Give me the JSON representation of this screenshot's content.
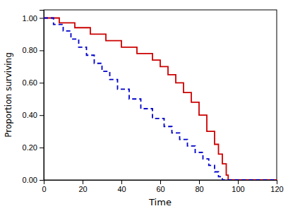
{
  "chart_data": {
    "type": "line",
    "xlabel": "Time",
    "ylabel": "Proportion surviving",
    "xlim": [
      0,
      120
    ],
    "ylim": [
      0.0,
      1.05
    ],
    "xticks": [
      0,
      20,
      40,
      60,
      80,
      100,
      120
    ],
    "yticks": [
      {
        "value": 0.0,
        "label": "0.00"
      },
      {
        "value": 0.2,
        "label": "0.20"
      },
      {
        "value": 0.4,
        "label": "0.40"
      },
      {
        "value": 0.6,
        "label": "0.60"
      },
      {
        "value": 0.8,
        "label": "0.80"
      },
      {
        "value": 1.0,
        "label": "1.00"
      }
    ],
    "grid": false,
    "series": [
      {
        "color": "#cc0000",
        "line_style": "solid",
        "x": [
          0,
          8,
          8,
          16,
          16,
          24,
          24,
          32,
          32,
          40,
          40,
          48,
          48,
          56,
          56,
          60,
          60,
          64,
          64,
          68,
          68,
          72,
          72,
          76,
          76,
          80,
          80,
          84,
          84,
          88,
          88,
          90,
          90,
          92,
          92,
          94,
          94,
          95,
          95,
          120
        ],
        "values": [
          1.0,
          1.0,
          0.97,
          0.97,
          0.94,
          0.94,
          0.9,
          0.9,
          0.86,
          0.86,
          0.82,
          0.82,
          0.78,
          0.78,
          0.74,
          0.74,
          0.7,
          0.7,
          0.65,
          0.65,
          0.6,
          0.6,
          0.54,
          0.54,
          0.48,
          0.48,
          0.4,
          0.4,
          0.3,
          0.3,
          0.22,
          0.22,
          0.16,
          0.16,
          0.1,
          0.1,
          0.03,
          0.03,
          0.0,
          0.0
        ]
      },
      {
        "color": "#0000cc",
        "line_style": "dashed",
        "x": [
          0,
          5,
          5,
          10,
          10,
          14,
          14,
          18,
          18,
          22,
          22,
          26,
          26,
          30,
          30,
          34,
          34,
          38,
          38,
          44,
          44,
          50,
          50,
          56,
          56,
          62,
          62,
          66,
          66,
          70,
          70,
          74,
          74,
          78,
          78,
          82,
          82,
          85,
          85,
          88,
          88,
          90,
          90,
          92,
          92,
          95,
          95,
          120
        ],
        "values": [
          1.0,
          1.0,
          0.96,
          0.96,
          0.92,
          0.92,
          0.87,
          0.87,
          0.82,
          0.82,
          0.77,
          0.77,
          0.72,
          0.72,
          0.67,
          0.67,
          0.62,
          0.62,
          0.56,
          0.56,
          0.5,
          0.5,
          0.44,
          0.44,
          0.38,
          0.38,
          0.33,
          0.33,
          0.29,
          0.29,
          0.25,
          0.25,
          0.21,
          0.21,
          0.17,
          0.17,
          0.13,
          0.13,
          0.09,
          0.09,
          0.05,
          0.05,
          0.02,
          0.02,
          0.0,
          0.0,
          0.0,
          0.0
        ]
      }
    ]
  }
}
